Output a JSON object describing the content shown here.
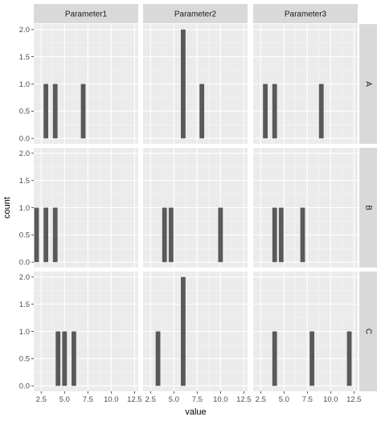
{
  "chart_data": {
    "type": "bar",
    "xlabel": "value",
    "ylabel": "count",
    "xlim": [
      1.7,
      12.9
    ],
    "ylim": [
      -0.1,
      2.1
    ],
    "x_ticks": [
      2.5,
      5.0,
      7.5,
      10.0,
      12.5
    ],
    "x_tick_labels": [
      "2.5",
      "5.0",
      "7.5",
      "10.0",
      "12.5"
    ],
    "y_ticks": [
      0.0,
      0.5,
      1.0,
      1.5,
      2.0
    ],
    "y_tick_labels": [
      "0.0",
      "0.5",
      "1.0",
      "1.5",
      "2.0"
    ],
    "col_facets": [
      "Parameter1",
      "Parameter2",
      "Parameter3"
    ],
    "row_facets": [
      "A",
      "B",
      "C"
    ],
    "bar_width": 0.5,
    "panel_background": "#ebebeb",
    "strip_background": "#d9d9d9",
    "bar_color": "#595959",
    "grid": true,
    "panels": [
      {
        "row": "A",
        "col": "Parameter1",
        "bars": [
          {
            "x": 3.0,
            "count": 1
          },
          {
            "x": 4.0,
            "count": 1
          },
          {
            "x": 7.0,
            "count": 1
          }
        ]
      },
      {
        "row": "A",
        "col": "Parameter2",
        "bars": [
          {
            "x": 6.0,
            "count": 2
          },
          {
            "x": 8.0,
            "count": 1
          }
        ]
      },
      {
        "row": "A",
        "col": "Parameter3",
        "bars": [
          {
            "x": 3.0,
            "count": 1
          },
          {
            "x": 4.0,
            "count": 1
          },
          {
            "x": 9.0,
            "count": 1
          }
        ]
      },
      {
        "row": "B",
        "col": "Parameter1",
        "bars": [
          {
            "x": 2.0,
            "count": 1
          },
          {
            "x": 3.0,
            "count": 1
          },
          {
            "x": 4.0,
            "count": 1
          }
        ]
      },
      {
        "row": "B",
        "col": "Parameter2",
        "bars": [
          {
            "x": 4.0,
            "count": 1
          },
          {
            "x": 4.7,
            "count": 1
          },
          {
            "x": 10.0,
            "count": 1
          }
        ]
      },
      {
        "row": "B",
        "col": "Parameter3",
        "bars": [
          {
            "x": 4.0,
            "count": 1
          },
          {
            "x": 4.7,
            "count": 1
          },
          {
            "x": 7.0,
            "count": 1
          }
        ]
      },
      {
        "row": "C",
        "col": "Parameter1",
        "bars": [
          {
            "x": 4.3,
            "count": 1
          },
          {
            "x": 5.0,
            "count": 1
          },
          {
            "x": 6.0,
            "count": 1
          }
        ]
      },
      {
        "row": "C",
        "col": "Parameter2",
        "bars": [
          {
            "x": 3.3,
            "count": 1
          },
          {
            "x": 6.0,
            "count": 2
          }
        ]
      },
      {
        "row": "C",
        "col": "Parameter3",
        "bars": [
          {
            "x": 4.0,
            "count": 1
          },
          {
            "x": 8.0,
            "count": 1
          },
          {
            "x": 12.0,
            "count": 1
          }
        ]
      }
    ]
  }
}
